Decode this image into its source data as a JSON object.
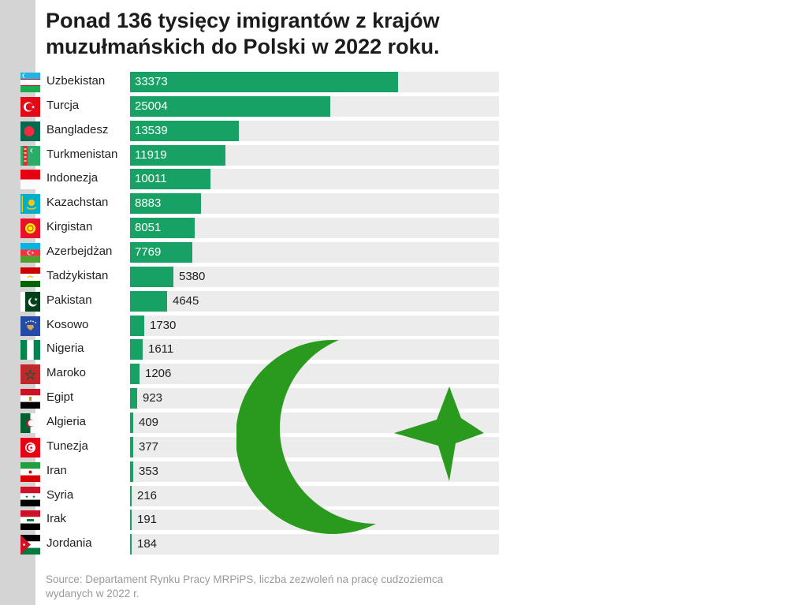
{
  "title": {
    "line1": "Ponad 136 tysięcy imigrantów z krajów",
    "line2": "muzułmańskich do Polski w 2022 roku."
  },
  "source": {
    "line1": "Source: Departament Rynku Pracy MRPiPS, liczba zezwoleń na pracę cudzoziemca",
    "line2": "wydanych w 2022 r."
  },
  "colors": {
    "bar": "#17a165",
    "track": "#ececec",
    "crescent": "#2a9a1f"
  },
  "emblem_icon": "crescent-and-star-icon",
  "chart_data": {
    "type": "bar",
    "orientation": "horizontal",
    "xlim": [
      0,
      46000
    ],
    "categories": [
      "Uzbekistan",
      "Turcja",
      "Bangladesz",
      "Turkmenistan",
      "Indonezja",
      "Kazachstan",
      "Kirgistan",
      "Azerbejdżan",
      "Tadżykistan",
      "Pakistan",
      "Kosowo",
      "Nigeria",
      "Maroko",
      "Egipt",
      "Algieria",
      "Tunezja",
      "Iran",
      "Syria",
      "Irak",
      "Jordania"
    ],
    "values": [
      33373,
      25004,
      13539,
      11919,
      10011,
      8883,
      8051,
      7769,
      5380,
      4645,
      1730,
      1611,
      1206,
      923,
      409,
      377,
      353,
      216,
      191,
      184
    ],
    "flag_icons": [
      "uzbekistan-flag-icon",
      "turkey-flag-icon",
      "bangladesh-flag-icon",
      "turkmenistan-flag-icon",
      "indonesia-flag-icon",
      "kazakhstan-flag-icon",
      "kyrgyzstan-flag-icon",
      "azerbaijan-flag-icon",
      "tajikistan-flag-icon",
      "pakistan-flag-icon",
      "kosovo-flag-icon",
      "nigeria-flag-icon",
      "morocco-flag-icon",
      "egypt-flag-icon",
      "algeria-flag-icon",
      "tunisia-flag-icon",
      "iran-flag-icon",
      "syria-flag-icon",
      "iraq-flag-icon",
      "jordan-flag-icon"
    ]
  }
}
